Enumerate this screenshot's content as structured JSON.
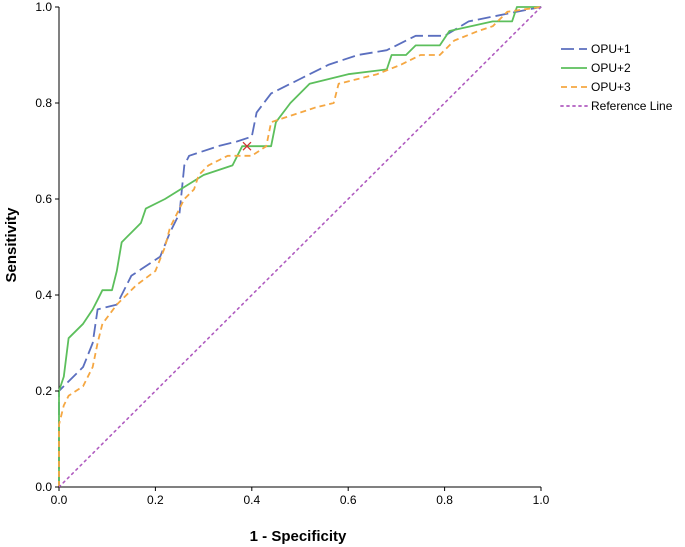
{
  "chart_data": {
    "type": "line",
    "title": "",
    "xlabel": "1 - Specificity",
    "ylabel": "Sensitivity",
    "xlim": [
      0,
      1
    ],
    "ylim": [
      0,
      1
    ],
    "xticks": [
      "0.0",
      "0.2",
      "0.4",
      "0.6",
      "0.8",
      "1.0"
    ],
    "yticks": [
      "0.0",
      "0.2",
      "0.4",
      "0.6",
      "0.8",
      "1.0"
    ],
    "grid": false,
    "legend_position": "top-right",
    "series": [
      {
        "name": "OPU+1",
        "color": "#5b6fbf",
        "dash": "long-dash",
        "points": [
          [
            0,
            0
          ],
          [
            0,
            0.2
          ],
          [
            0.02,
            0.22
          ],
          [
            0.05,
            0.25
          ],
          [
            0.07,
            0.3
          ],
          [
            0.08,
            0.37
          ],
          [
            0.12,
            0.38
          ],
          [
            0.15,
            0.44
          ],
          [
            0.21,
            0.48
          ],
          [
            0.23,
            0.53
          ],
          [
            0.25,
            0.57
          ],
          [
            0.26,
            0.67
          ],
          [
            0.27,
            0.69
          ],
          [
            0.33,
            0.71
          ],
          [
            0.37,
            0.72
          ],
          [
            0.4,
            0.73
          ],
          [
            0.41,
            0.78
          ],
          [
            0.44,
            0.82
          ],
          [
            0.5,
            0.85
          ],
          [
            0.56,
            0.88
          ],
          [
            0.62,
            0.9
          ],
          [
            0.68,
            0.91
          ],
          [
            0.74,
            0.94
          ],
          [
            0.8,
            0.94
          ],
          [
            0.85,
            0.97
          ],
          [
            0.9,
            0.98
          ],
          [
            0.95,
            0.99
          ],
          [
            1,
            1
          ]
        ]
      },
      {
        "name": "OPU+2",
        "color": "#5cbf5c",
        "dash": "solid",
        "points": [
          [
            0,
            0
          ],
          [
            0,
            0.2
          ],
          [
            0.01,
            0.23
          ],
          [
            0.02,
            0.31
          ],
          [
            0.05,
            0.34
          ],
          [
            0.07,
            0.37
          ],
          [
            0.08,
            0.39
          ],
          [
            0.09,
            0.41
          ],
          [
            0.11,
            0.41
          ],
          [
            0.12,
            0.45
          ],
          [
            0.13,
            0.51
          ],
          [
            0.15,
            0.53
          ],
          [
            0.17,
            0.55
          ],
          [
            0.18,
            0.58
          ],
          [
            0.22,
            0.6
          ],
          [
            0.3,
            0.65
          ],
          [
            0.36,
            0.67
          ],
          [
            0.38,
            0.71
          ],
          [
            0.44,
            0.71
          ],
          [
            0.45,
            0.76
          ],
          [
            0.48,
            0.8
          ],
          [
            0.52,
            0.84
          ],
          [
            0.6,
            0.86
          ],
          [
            0.68,
            0.87
          ],
          [
            0.69,
            0.9
          ],
          [
            0.72,
            0.9
          ],
          [
            0.74,
            0.92
          ],
          [
            0.79,
            0.92
          ],
          [
            0.81,
            0.95
          ],
          [
            0.9,
            0.97
          ],
          [
            0.94,
            0.97
          ],
          [
            0.95,
            1
          ],
          [
            1,
            1
          ]
        ]
      },
      {
        "name": "OPU+3",
        "color": "#f5a742",
        "dash": "short-dash",
        "points": [
          [
            0,
            0
          ],
          [
            0,
            0.13
          ],
          [
            0.01,
            0.17
          ],
          [
            0.02,
            0.19
          ],
          [
            0.05,
            0.21
          ],
          [
            0.07,
            0.25
          ],
          [
            0.08,
            0.3
          ],
          [
            0.09,
            0.34
          ],
          [
            0.12,
            0.38
          ],
          [
            0.16,
            0.42
          ],
          [
            0.2,
            0.45
          ],
          [
            0.22,
            0.5
          ],
          [
            0.23,
            0.54
          ],
          [
            0.26,
            0.6
          ],
          [
            0.28,
            0.62
          ],
          [
            0.29,
            0.65
          ],
          [
            0.31,
            0.67
          ],
          [
            0.35,
            0.69
          ],
          [
            0.4,
            0.69
          ],
          [
            0.43,
            0.71
          ],
          [
            0.44,
            0.76
          ],
          [
            0.47,
            0.77
          ],
          [
            0.53,
            0.79
          ],
          [
            0.57,
            0.8
          ],
          [
            0.58,
            0.84
          ],
          [
            0.66,
            0.86
          ],
          [
            0.71,
            0.88
          ],
          [
            0.75,
            0.9
          ],
          [
            0.79,
            0.9
          ],
          [
            0.82,
            0.93
          ],
          [
            0.87,
            0.95
          ],
          [
            0.9,
            0.96
          ],
          [
            0.93,
            0.99
          ],
          [
            1,
            1
          ]
        ]
      },
      {
        "name": "Reference Line",
        "color": "#b05cc0",
        "dash": "dotted",
        "points": [
          [
            0,
            0
          ],
          [
            1,
            1
          ]
        ]
      }
    ],
    "annotations": [
      {
        "type": "cross-marker",
        "color": "#d03030",
        "x": 0.39,
        "y": 0.71
      }
    ]
  }
}
